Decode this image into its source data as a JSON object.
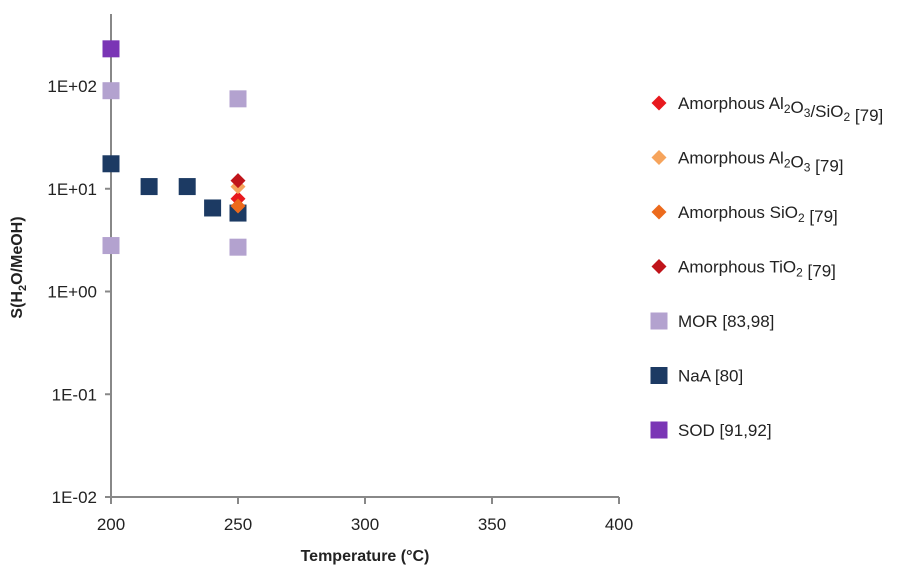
{
  "chart_data": {
    "type": "scatter",
    "xlabel": "Temperature (°C)",
    "ylabel": {
      "prefix": "S(H",
      "sub1": "2",
      "suffix": "O/MeOH)"
    },
    "xlim": [
      200,
      400
    ],
    "ylim": [
      0.01,
      500
    ],
    "yscale": "log",
    "x_ticks": [
      200,
      250,
      300,
      350,
      400
    ],
    "x_tick_labels": [
      "200",
      "250",
      "300",
      "350",
      "400"
    ],
    "y_ticks": [
      0.01,
      0.1,
      1,
      10,
      100
    ],
    "y_tick_labels": [
      "1E-02",
      "1E-01",
      "1E+00",
      "1E+01",
      "1E+02"
    ],
    "grid": false,
    "legend_position": "right",
    "series": [
      {
        "name": "Amorphous Al2O3/SiO2 [79]",
        "legend_parts": [
          [
            "Amorphous  Al",
            ""
          ],
          [
            "2",
            "sub"
          ],
          [
            "O",
            ""
          ],
          [
            "3",
            "sub"
          ],
          [
            "/SiO",
            ""
          ],
          [
            "2",
            "sub"
          ],
          [
            " [79]",
            ""
          ]
        ],
        "marker": "diamond",
        "color": "#e8191e",
        "points": [
          [
            250,
            8.0
          ]
        ]
      },
      {
        "name": "Amorphous Al2O3 [79]",
        "legend_parts": [
          [
            "Amorphous  Al",
            ""
          ],
          [
            "2",
            "sub"
          ],
          [
            "O",
            ""
          ],
          [
            "3",
            "sub"
          ],
          [
            "  [79]",
            ""
          ]
        ],
        "marker": "diamond",
        "color": "#f6a45c",
        "points": [
          [
            250,
            10.5
          ]
        ]
      },
      {
        "name": "Amorphous SiO2 [79]",
        "legend_parts": [
          [
            "Amorphous  SiO",
            ""
          ],
          [
            "2",
            "sub"
          ],
          [
            "  [79]",
            ""
          ]
        ],
        "marker": "diamond",
        "color": "#ec6a1c",
        "points": [
          [
            250,
            6.8
          ]
        ]
      },
      {
        "name": "Amorphous TiO2 [79]",
        "legend_parts": [
          [
            "Amorphous  TiO",
            ""
          ],
          [
            "2",
            "sub"
          ],
          [
            "  [79]",
            ""
          ]
        ],
        "marker": "diamond",
        "color": "#c0141a",
        "points": [
          [
            250,
            12.0
          ]
        ]
      },
      {
        "name": "MOR [83,98]",
        "legend_parts": [
          [
            "MOR [83,98]",
            ""
          ]
        ],
        "marker": "square",
        "color": "#b3a2cf",
        "points": [
          [
            200,
            90
          ],
          [
            200,
            2.8
          ],
          [
            250,
            75
          ],
          [
            250,
            2.7
          ]
        ]
      },
      {
        "name": "NaA [80]",
        "legend_parts": [
          [
            "NaA [80]",
            ""
          ]
        ],
        "marker": "square",
        "color": "#1c3a63",
        "points": [
          [
            200,
            17.5
          ],
          [
            215,
            10.5
          ],
          [
            230,
            10.5
          ],
          [
            240,
            6.5
          ],
          [
            250,
            5.8
          ]
        ]
      },
      {
        "name": "SOD [91,92]",
        "legend_parts": [
          [
            "SOD [91,92]",
            ""
          ]
        ],
        "marker": "square",
        "color": "#7a35b5",
        "points": [
          [
            200,
            230
          ]
        ]
      }
    ]
  }
}
